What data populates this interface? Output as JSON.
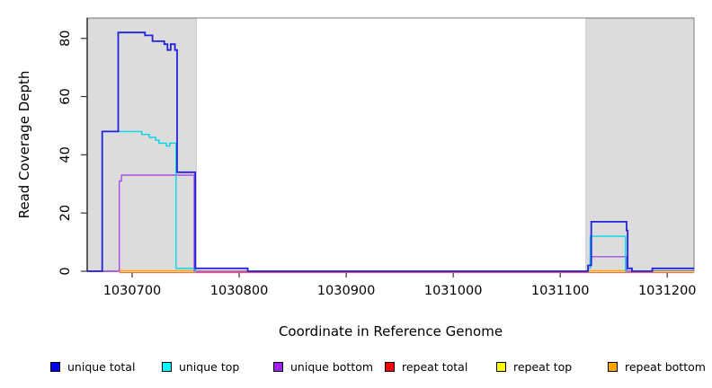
{
  "figure": {
    "background": "#ffffff",
    "shaded_region_color": "#dcdcdc",
    "box_color": "#8f8f8f",
    "axis_color": "#1a1a1a"
  },
  "chart_data": {
    "type": "line",
    "title": "",
    "xlabel": "Coordinate in Reference Genome",
    "ylabel": "Read Coverage Depth",
    "xlim": [
      1030658,
      1031225
    ],
    "ylim": [
      0,
      87
    ],
    "x_ticks": [
      1030700,
      1030800,
      1030900,
      1031000,
      1031100,
      1031200
    ],
    "y_ticks": [
      0,
      20,
      40,
      60,
      80
    ],
    "grid": false,
    "legend_position": "bottom",
    "shaded_regions": [
      {
        "x0": 1030658,
        "x1": 1030760
      },
      {
        "x0": 1031124,
        "x1": 1031225
      }
    ],
    "series": [
      {
        "name": "unique total",
        "color": "#2323DC",
        "width": 1.8,
        "segments": [
          [
            [
              1030658,
              0
            ],
            [
              1030672,
              48
            ],
            [
              1030687,
              82
            ],
            [
              1030712,
              81
            ],
            [
              1030719,
              79
            ],
            [
              1030730,
              78
            ],
            [
              1030733,
              76
            ],
            [
              1030736,
              78
            ],
            [
              1030740,
              76
            ],
            [
              1030742,
              34
            ],
            [
              1030759,
              1
            ],
            [
              1030808,
              0
            ],
            [
              1031126,
              2
            ],
            [
              1031129,
              17
            ],
            [
              1031162,
              14
            ],
            [
              1031163,
              1
            ],
            [
              1031167,
              0
            ],
            [
              1031186,
              1
            ],
            [
              1031225,
              1
            ]
          ]
        ]
      },
      {
        "name": "unique top",
        "color": "#00D8E8",
        "width": 1.4,
        "segments": [
          [
            [
              1030672,
              48
            ],
            [
              1030709,
              47
            ],
            [
              1030716,
              46
            ],
            [
              1030722,
              45
            ],
            [
              1030725,
              44
            ],
            [
              1030732,
              43
            ],
            [
              1030735,
              44
            ],
            [
              1030741,
              1
            ],
            [
              1030759,
              0
            ],
            [
              1030760,
              0
            ]
          ],
          [
            [
              1031126,
              1
            ],
            [
              1031128,
              12
            ],
            [
              1031161,
              0
            ],
            [
              1031162,
              0
            ]
          ]
        ]
      },
      {
        "name": "unique bottom",
        "color": "#A44FE0",
        "width": 1.4,
        "segments": [
          [
            [
              1030658,
              0
            ],
            [
              1030688,
              31
            ],
            [
              1030690,
              33
            ],
            [
              1030758,
              0
            ],
            [
              1031126,
              1
            ],
            [
              1031128,
              5
            ],
            [
              1031162,
              0
            ],
            [
              1031186,
              1
            ],
            [
              1031225,
              1
            ]
          ]
        ]
      },
      {
        "name": "repeat total",
        "color": "#EA5A60",
        "width": 1.3,
        "segments": [
          [
            [
              1030688,
              0
            ],
            [
              1031225,
              0
            ]
          ]
        ]
      },
      {
        "name": "repeat top",
        "color": "#E9E96B",
        "width": 1.3,
        "segments": [
          [
            [
              1030686,
              0
            ],
            [
              1030760,
              0
            ]
          ],
          [
            [
              1031126,
              0
            ],
            [
              1031225,
              0
            ]
          ]
        ]
      },
      {
        "name": "repeat bottom",
        "color": "#FFA41E",
        "width": 1.6,
        "segments": [
          [
            [
              1030686,
              0
            ],
            [
              1030760,
              0
            ]
          ],
          [
            [
              1031126,
              0
            ],
            [
              1031164,
              0
            ]
          ]
        ]
      }
    ]
  },
  "legend": {
    "items": [
      {
        "label": "unique total",
        "color": "#0000EE"
      },
      {
        "label": "unique top",
        "color": "#00FFFF"
      },
      {
        "label": "unique bottom",
        "color": "#A020F0"
      },
      {
        "label": "repeat total",
        "color": "#FF0000"
      },
      {
        "label": "repeat top",
        "color": "#FFFF00"
      },
      {
        "label": "repeat bottom",
        "color": "#FFA500"
      }
    ]
  }
}
